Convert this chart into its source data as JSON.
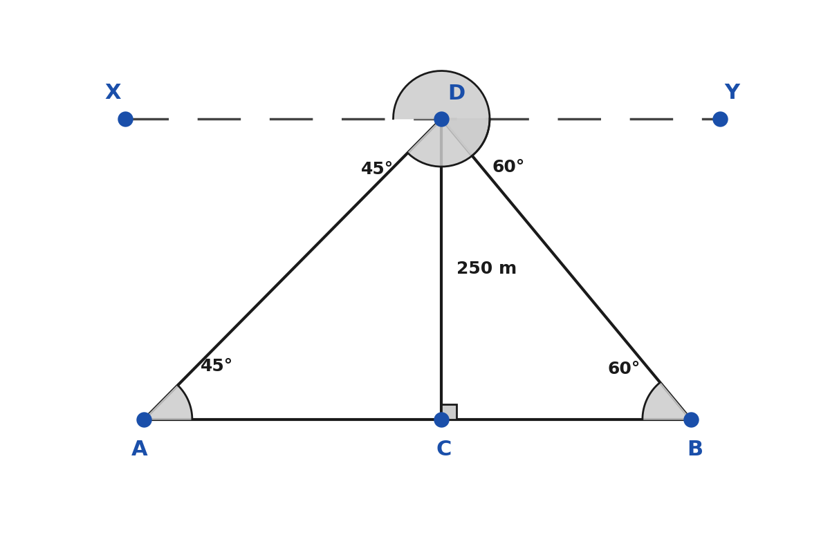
{
  "background_color": "#ffffff",
  "line_color": "#1a1a1a",
  "dot_color": "#1a4faa",
  "angle_fill_color": "#cccccc",
  "dashed_line_color": "#444444",
  "label_color": "#1a4faa",
  "text_color": "#1a1a1a",
  "altitude_label": "250 m",
  "angle_A_label": "45°",
  "angle_B_label": "60°",
  "angle_D_left_label": "45°",
  "angle_D_right_label": "60°",
  "line_width": 3.0,
  "font_size_label": 22,
  "font_size_angle": 18
}
